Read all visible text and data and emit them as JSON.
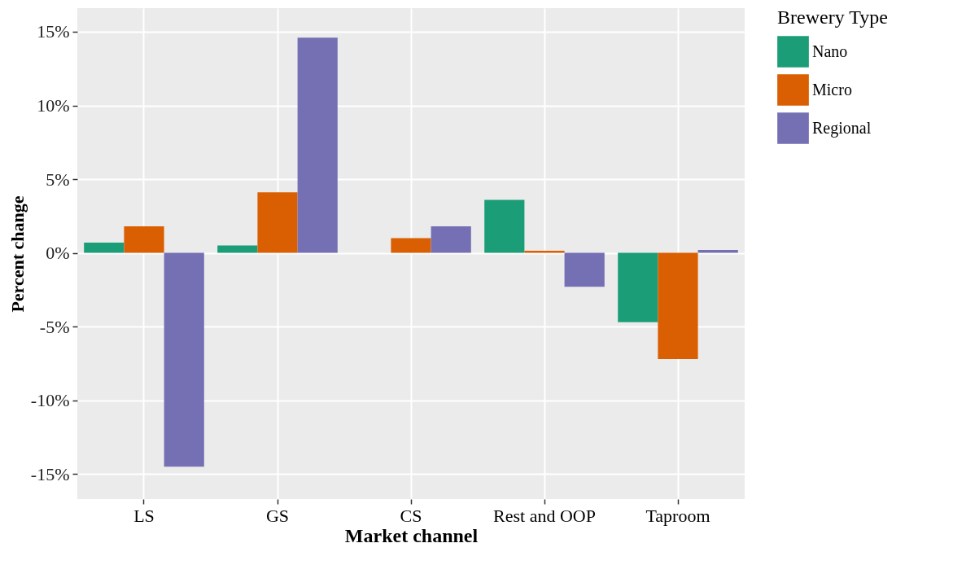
{
  "chart_data": {
    "type": "bar",
    "xlabel": "Market channel",
    "ylabel": "Percent change",
    "legend_title": "Brewery Type",
    "categories": [
      "LS",
      "GS",
      "CS",
      "Rest and OOP",
      "Taproom"
    ],
    "series": [
      {
        "name": "Nano",
        "color": "#1b9e77",
        "values": [
          0.7,
          0.5,
          0,
          3.6,
          -4.7
        ]
      },
      {
        "name": "Micro",
        "color": "#d95f02",
        "values": [
          1.8,
          4.1,
          1.0,
          0.15,
          -7.2
        ]
      },
      {
        "name": "Regional",
        "color": "#7570b3",
        "values": [
          -14.5,
          14.6,
          1.8,
          -2.3,
          0.2
        ]
      }
    ],
    "ylim": [
      -16.7,
      16.6
    ],
    "yticks": [
      {
        "value": -15,
        "label": "-15%"
      },
      {
        "value": -10,
        "label": "-10%"
      },
      {
        "value": -5,
        "label": "-5%"
      },
      {
        "value": 0,
        "label": "0%"
      },
      {
        "value": 5,
        "label": "5%"
      },
      {
        "value": 10,
        "label": "10%"
      },
      {
        "value": 15,
        "label": "15%"
      }
    ],
    "grid": true,
    "legend": "right"
  }
}
